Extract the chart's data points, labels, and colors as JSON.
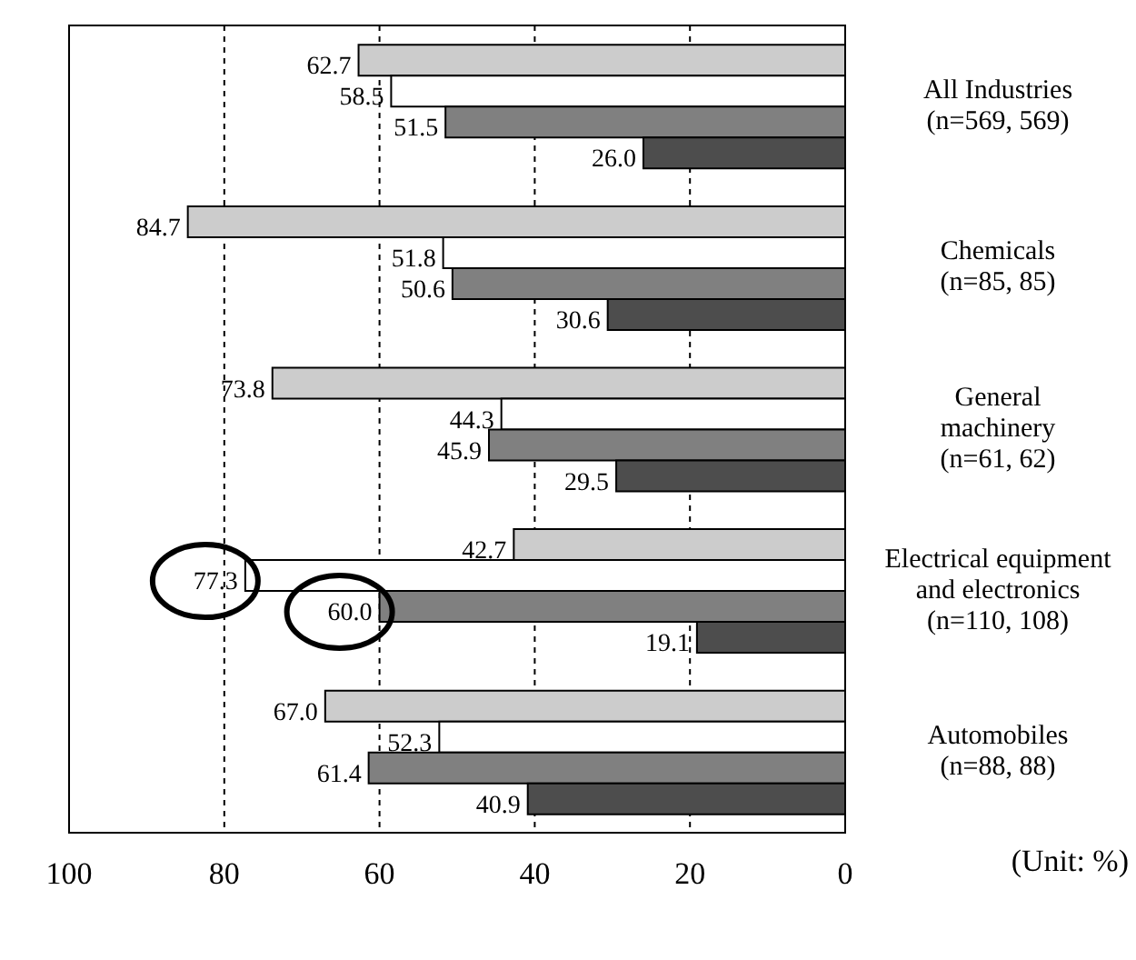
{
  "chart_data": {
    "type": "bar",
    "orientation": "horizontal",
    "categories": [
      "All Industries\n(n=569, 569)",
      "Chemicals\n(n=85, 85)",
      "General\nmachinery\n(n=61, 62)",
      "Electrical equipment\nand electronics\n(n=110, 108)",
      "Automobiles\n(n=88, 88)"
    ],
    "series": [
      {
        "color": "#cccccc",
        "values": [
          62.7,
          84.7,
          73.8,
          42.7,
          67.0
        ],
        "value_labels": [
          "62.7",
          "84.7",
          "73.8",
          "42.7",
          "67.0"
        ]
      },
      {
        "color": "#ffffff",
        "values": [
          58.5,
          51.8,
          44.3,
          77.3,
          52.3
        ],
        "value_labels": [
          "58.5",
          "51.8",
          "44.3",
          "77.3",
          "52.3"
        ]
      },
      {
        "color": "#808080",
        "values": [
          51.5,
          50.6,
          45.9,
          60.0,
          61.4
        ],
        "value_labels": [
          "51.5",
          "50.6",
          "45.9",
          "60.0",
          "61.4"
        ]
      },
      {
        "color": "#4d4d4d",
        "values": [
          26.0,
          30.6,
          29.5,
          19.1,
          40.9
        ],
        "value_labels": [
          "26.0",
          "30.6",
          "29.5",
          "19.1",
          "40.9"
        ]
      }
    ],
    "xlim": [
      100,
      0
    ],
    "xticks": [
      100,
      80,
      60,
      40,
      20,
      0
    ],
    "grid": "x",
    "annotations": [
      "(Unit: %)"
    ]
  }
}
